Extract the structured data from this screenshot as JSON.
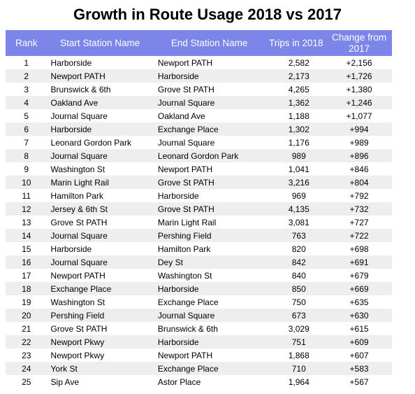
{
  "chart_data": {
    "type": "table",
    "title": "Growth in Route Usage 2018 vs 2017",
    "columns": [
      "Rank",
      "Start Station Name",
      "End Station Name",
      "Trips in 2018",
      "Change from 2017"
    ],
    "rows": [
      [
        "1",
        "Harborside",
        "Newport PATH",
        "2,582",
        "+2,156"
      ],
      [
        "2",
        "Newport PATH",
        "Harborside",
        "2,173",
        "+1,726"
      ],
      [
        "3",
        "Brunswick & 6th",
        "Grove St PATH",
        "4,265",
        "+1,380"
      ],
      [
        "4",
        "Oakland Ave",
        "Journal Square",
        "1,362",
        "+1,246"
      ],
      [
        "5",
        "Journal Square",
        "Oakland Ave",
        "1,188",
        "+1,077"
      ],
      [
        "6",
        "Harborside",
        "Exchange Place",
        "1,302",
        "+994"
      ],
      [
        "7",
        "Leonard Gordon Park",
        "Journal Square",
        "1,176",
        "+989"
      ],
      [
        "8",
        "Journal Square",
        "Leonard Gordon Park",
        "989",
        "+896"
      ],
      [
        "9",
        "Washington St",
        "Newport PATH",
        "1,041",
        "+846"
      ],
      [
        "10",
        "Marin Light Rail",
        "Grove St PATH",
        "3,216",
        "+804"
      ],
      [
        "11",
        "Hamilton Park",
        "Harborside",
        "969",
        "+792"
      ],
      [
        "12",
        "Jersey & 6th St",
        "Grove St PATH",
        "4,135",
        "+732"
      ],
      [
        "13",
        "Grove St PATH",
        "Marin Light Rail",
        "3,081",
        "+727"
      ],
      [
        "14",
        "Journal Square",
        "Pershing Field",
        "763",
        "+722"
      ],
      [
        "15",
        "Harborside",
        "Hamilton Park",
        "820",
        "+698"
      ],
      [
        "16",
        "Journal Square",
        "Dey St",
        "842",
        "+691"
      ],
      [
        "17",
        "Newport PATH",
        "Washington St",
        "840",
        "+679"
      ],
      [
        "18",
        "Exchange Place",
        "Harborside",
        "850",
        "+669"
      ],
      [
        "19",
        "Washington St",
        "Exchange Place",
        "750",
        "+635"
      ],
      [
        "20",
        "Pershing Field",
        "Journal Square",
        "673",
        "+630"
      ],
      [
        "21",
        "Grove St PATH",
        "Brunswick & 6th",
        "3,029",
        "+615"
      ],
      [
        "22",
        "Newport Pkwy",
        "Harborside",
        "751",
        "+609"
      ],
      [
        "23",
        "Newport Pkwy",
        "Newport PATH",
        "1,868",
        "+607"
      ],
      [
        "24",
        "York St",
        "Exchange Place",
        "710",
        "+583"
      ],
      [
        "25",
        "Sip Ave",
        "Astor Place",
        "1,964",
        "+567"
      ]
    ]
  },
  "colors": {
    "header_bg": "#7b86e8",
    "header_text": "#ffffff",
    "stripe": "#eeeeee"
  }
}
